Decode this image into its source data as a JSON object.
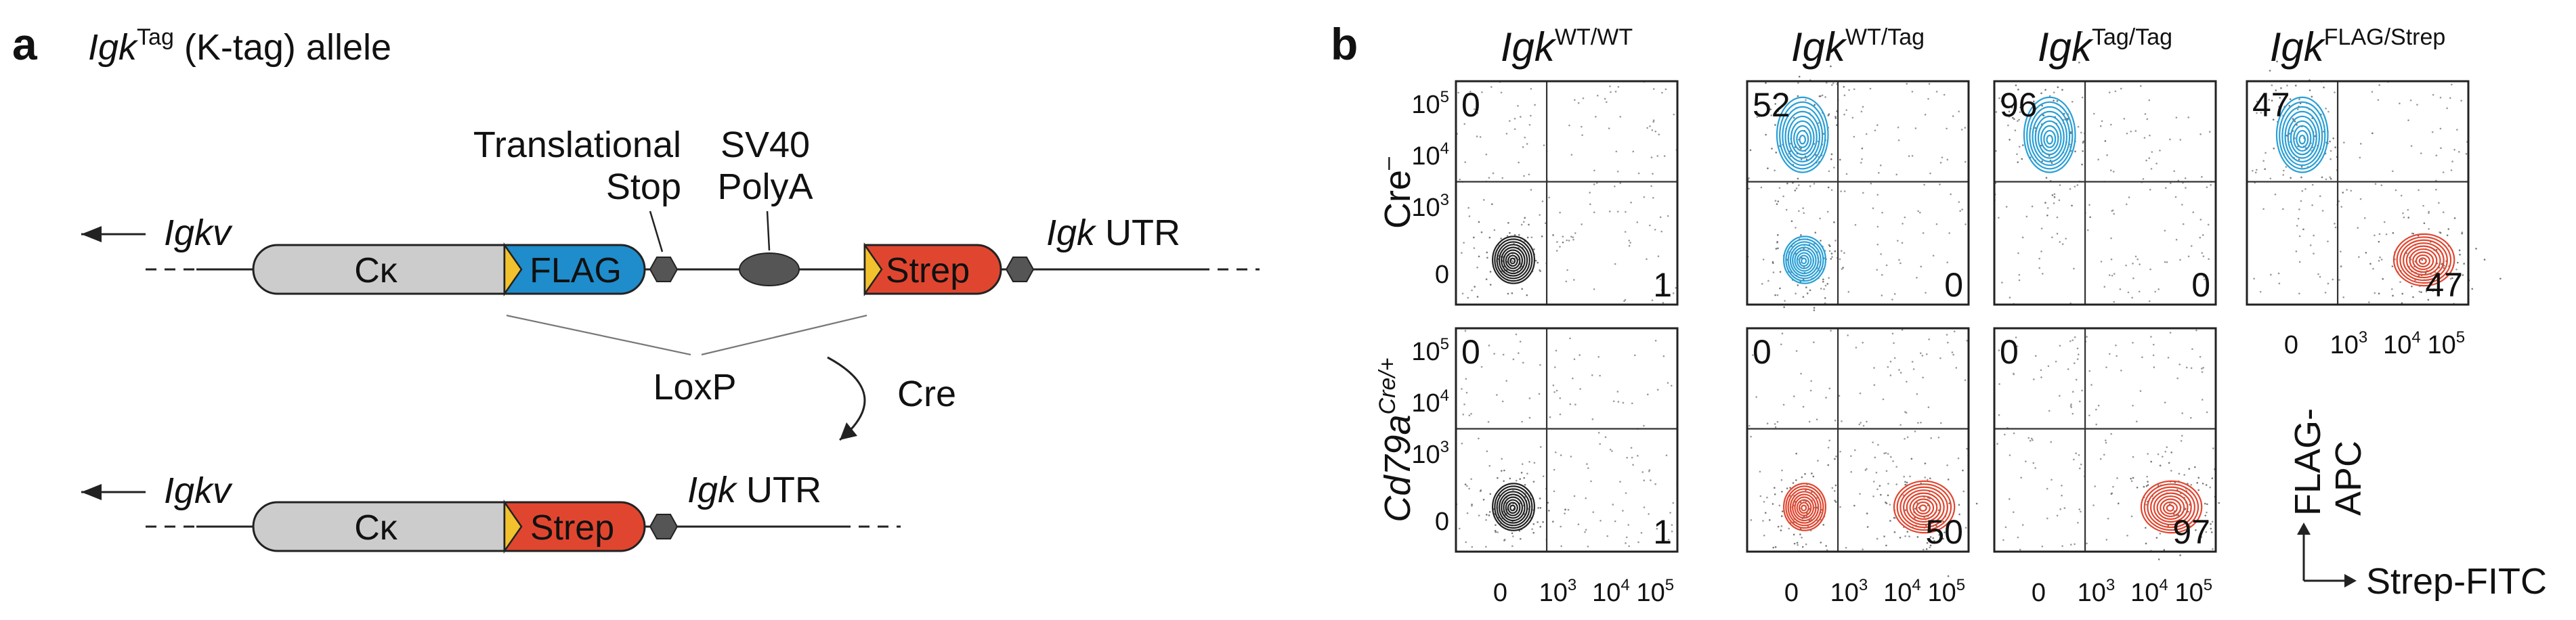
{
  "panel_a": {
    "letter": "a",
    "title_gene": "Igk",
    "title_sup": "Tag",
    "title_rest": " (K-tag) allele",
    "igkv_label": "Igkv",
    "ck_label": "Cκ",
    "flag_label": "FLAG",
    "strep_label": "Strep",
    "stop_label_line1": "Translational",
    "stop_label_line2": "Stop",
    "polya_label_line1": "SV40",
    "polya_label_line2": "PolyA",
    "utr_gene": "Igk",
    "utr_rest": " UTR",
    "loxp_label": "LoxP",
    "cre_label": "Cre",
    "colors": {
      "ck": "#cccccc",
      "flag": "#1f8ccb",
      "strep": "#e0462f",
      "loxp": "#f2c12e",
      "stop": "#555555"
    }
  },
  "panel_b": {
    "letter": "b",
    "columns": [
      {
        "gene": "Igk",
        "sup": "WT/WT"
      },
      {
        "gene": "Igk",
        "sup": "WT/Tag"
      },
      {
        "gene": "Igk",
        "sup": "Tag/Tag"
      },
      {
        "gene": "Igk",
        "sup": "FLAG/Strep"
      }
    ],
    "rows": [
      {
        "label": "Cre",
        "sup": "–",
        "italic": false
      },
      {
        "label": "Cd79a",
        "sup": "Cre/+",
        "italic": true
      }
    ],
    "plots": [
      {
        "row": 0,
        "col": 0,
        "top_left": "0",
        "bottom_right": "1",
        "color": "#222222",
        "populations": [
          "neg"
        ]
      },
      {
        "row": 0,
        "col": 1,
        "top_left": "52",
        "bottom_right": "0",
        "color": "#2a9fd6",
        "populations": [
          "flag",
          "neg"
        ]
      },
      {
        "row": 0,
        "col": 2,
        "top_left": "96",
        "bottom_right": "0",
        "color": "#2a9fd6",
        "populations": [
          "flag"
        ]
      },
      {
        "row": 0,
        "col": 3,
        "top_left": "47",
        "bottom_right": "47",
        "color_flag": "#2a9fd6",
        "color_strep": "#e0462f",
        "populations": [
          "flag",
          "strep"
        ]
      },
      {
        "row": 1,
        "col": 0,
        "top_left": "0",
        "bottom_right": "1",
        "color": "#222222",
        "populations": [
          "neg"
        ]
      },
      {
        "row": 1,
        "col": 1,
        "top_left": "0",
        "bottom_right": "50",
        "color": "#e0462f",
        "populations": [
          "neg",
          "strep"
        ]
      },
      {
        "row": 1,
        "col": 2,
        "top_left": "0",
        "bottom_right": "97",
        "color": "#e0462f",
        "populations": [
          "strep"
        ]
      }
    ],
    "y_ticks": [
      {
        "base": "10",
        "exp": "5"
      },
      {
        "base": "10",
        "exp": "4"
      },
      {
        "base": "10",
        "exp": "3"
      },
      {
        "base": "0",
        "exp": ""
      }
    ],
    "x_ticks": [
      {
        "base": "0",
        "exp": ""
      },
      {
        "base": "10",
        "exp": "3"
      },
      {
        "base": "10",
        "exp": "4"
      },
      {
        "base": "10",
        "exp": "5"
      }
    ],
    "y_axis_line1": "FLAG-",
    "y_axis_line2": "APC",
    "x_axis_label": "Strep-FITC"
  }
}
